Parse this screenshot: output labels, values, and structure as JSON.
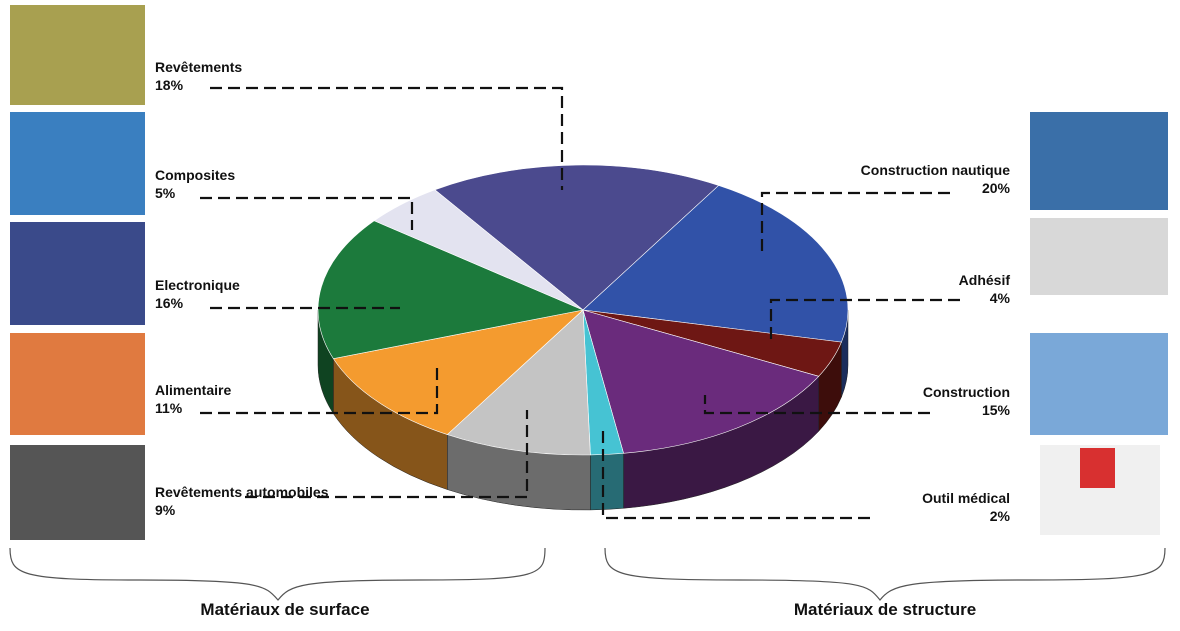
{
  "chart_data": {
    "type": "pie",
    "categories": [
      "Revêtements",
      "Construction nautique",
      "Adhésif",
      "Construction",
      "Outil médical",
      "Revêtements automobiles",
      "Alimentaire",
      "Electronique",
      "Composites"
    ],
    "values": [
      18,
      20,
      4,
      15,
      2,
      9,
      11,
      16,
      5
    ],
    "value_labels": [
      "18%",
      "20%",
      "4%",
      "15%",
      "2%",
      "9%",
      "11%",
      "16%",
      "5%"
    ],
    "colors": [
      "#4b4a8e",
      "#3152a8",
      "#6e1714",
      "#6a2b7c",
      "#46c3d3",
      "#c4c4c4",
      "#f49b2f",
      "#1c7a3c",
      "#e3e3f0"
    ],
    "groups": [
      "Matériaux de surface",
      "Matériaux de structure"
    ]
  }
}
